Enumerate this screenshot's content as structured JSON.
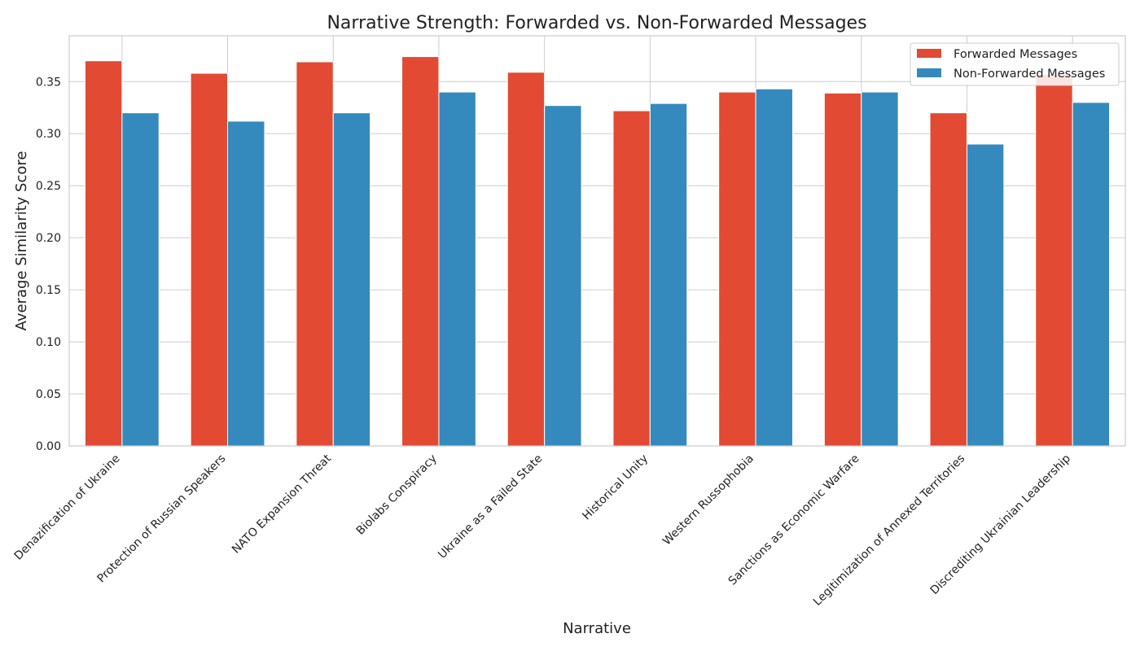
{
  "chart_data": {
    "type": "bar",
    "title": "Narrative Strength: Forwarded vs. Non-Forwarded Messages",
    "xlabel": "Narrative",
    "ylabel": "Average Similarity Score",
    "ylim": [
      0,
      0.394
    ],
    "yticks": [
      0.0,
      0.05,
      0.1,
      0.15,
      0.2,
      0.25,
      0.3,
      0.35
    ],
    "ytick_labels": [
      "0.00",
      "0.05",
      "0.10",
      "0.15",
      "0.20",
      "0.25",
      "0.30",
      "0.35"
    ],
    "grid": true,
    "legend_position": "top-right",
    "categories": [
      "Denazification of Ukraine",
      "Protection of Russian Speakers",
      "NATO Expansion Threat",
      "Biolabs Conspiracy",
      "Ukraine as a Failed State",
      "Historical Unity",
      "Western Russophobia",
      "Sanctions as Economic Warfare",
      "Legitimization of Annexed Territories",
      "Discrediting Ukrainian Leadership"
    ],
    "series": [
      {
        "name": "Forwarded Messages",
        "color": "#e24a33",
        "values": [
          0.37,
          0.358,
          0.369,
          0.374,
          0.359,
          0.322,
          0.34,
          0.339,
          0.32,
          0.357
        ]
      },
      {
        "name": "Non-Forwarded Messages",
        "color": "#348abd",
        "values": [
          0.32,
          0.312,
          0.32,
          0.34,
          0.327,
          0.329,
          0.343,
          0.34,
          0.29,
          0.33
        ]
      }
    ]
  }
}
